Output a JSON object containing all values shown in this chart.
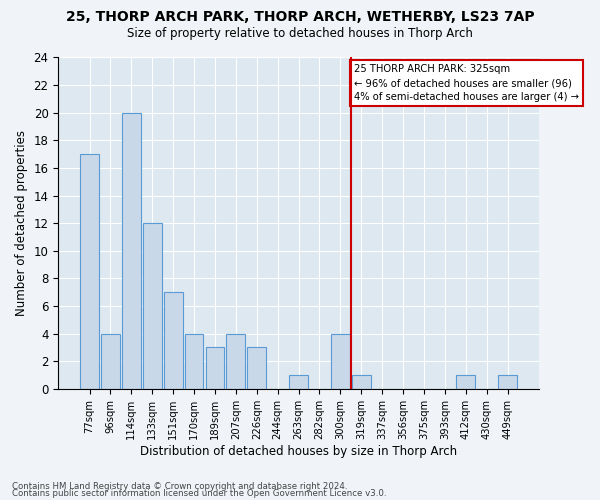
{
  "title1": "25, THORP ARCH PARK, THORP ARCH, WETHERBY, LS23 7AP",
  "title2": "Size of property relative to detached houses in Thorp Arch",
  "xlabel": "Distribution of detached houses by size in Thorp Arch",
  "ylabel": "Number of detached properties",
  "categories": [
    "77sqm",
    "96sqm",
    "114sqm",
    "133sqm",
    "151sqm",
    "170sqm",
    "189sqm",
    "207sqm",
    "226sqm",
    "244sqm",
    "263sqm",
    "282sqm",
    "300sqm",
    "319sqm",
    "337sqm",
    "356sqm",
    "375sqm",
    "393sqm",
    "412sqm",
    "430sqm",
    "449sqm"
  ],
  "values": [
    17,
    4,
    20,
    12,
    7,
    4,
    3,
    4,
    3,
    0,
    1,
    0,
    4,
    1,
    0,
    0,
    0,
    0,
    1,
    0,
    1
  ],
  "bar_color": "#c8d8e8",
  "bar_edge_color": "#5b9bd5",
  "vline_x_index": 13,
  "vline_color": "#cc0000",
  "annotation_title": "25 THORP ARCH PARK: 325sqm",
  "annotation_line1": "← 96% of detached houses are smaller (96)",
  "annotation_line2": "4% of semi-detached houses are larger (4) →",
  "annotation_box_color": "#cc0000",
  "ylim": [
    0,
    24
  ],
  "yticks": [
    0,
    2,
    4,
    6,
    8,
    10,
    12,
    14,
    16,
    18,
    20,
    22,
    24
  ],
  "footer1": "Contains HM Land Registry data © Crown copyright and database right 2024.",
  "footer2": "Contains public sector information licensed under the Open Government Licence v3.0.",
  "bg_color": "#dde8f0",
  "fig_bg_color": "#f0f4f8",
  "figsize": [
    6.0,
    5.0
  ],
  "dpi": 100
}
